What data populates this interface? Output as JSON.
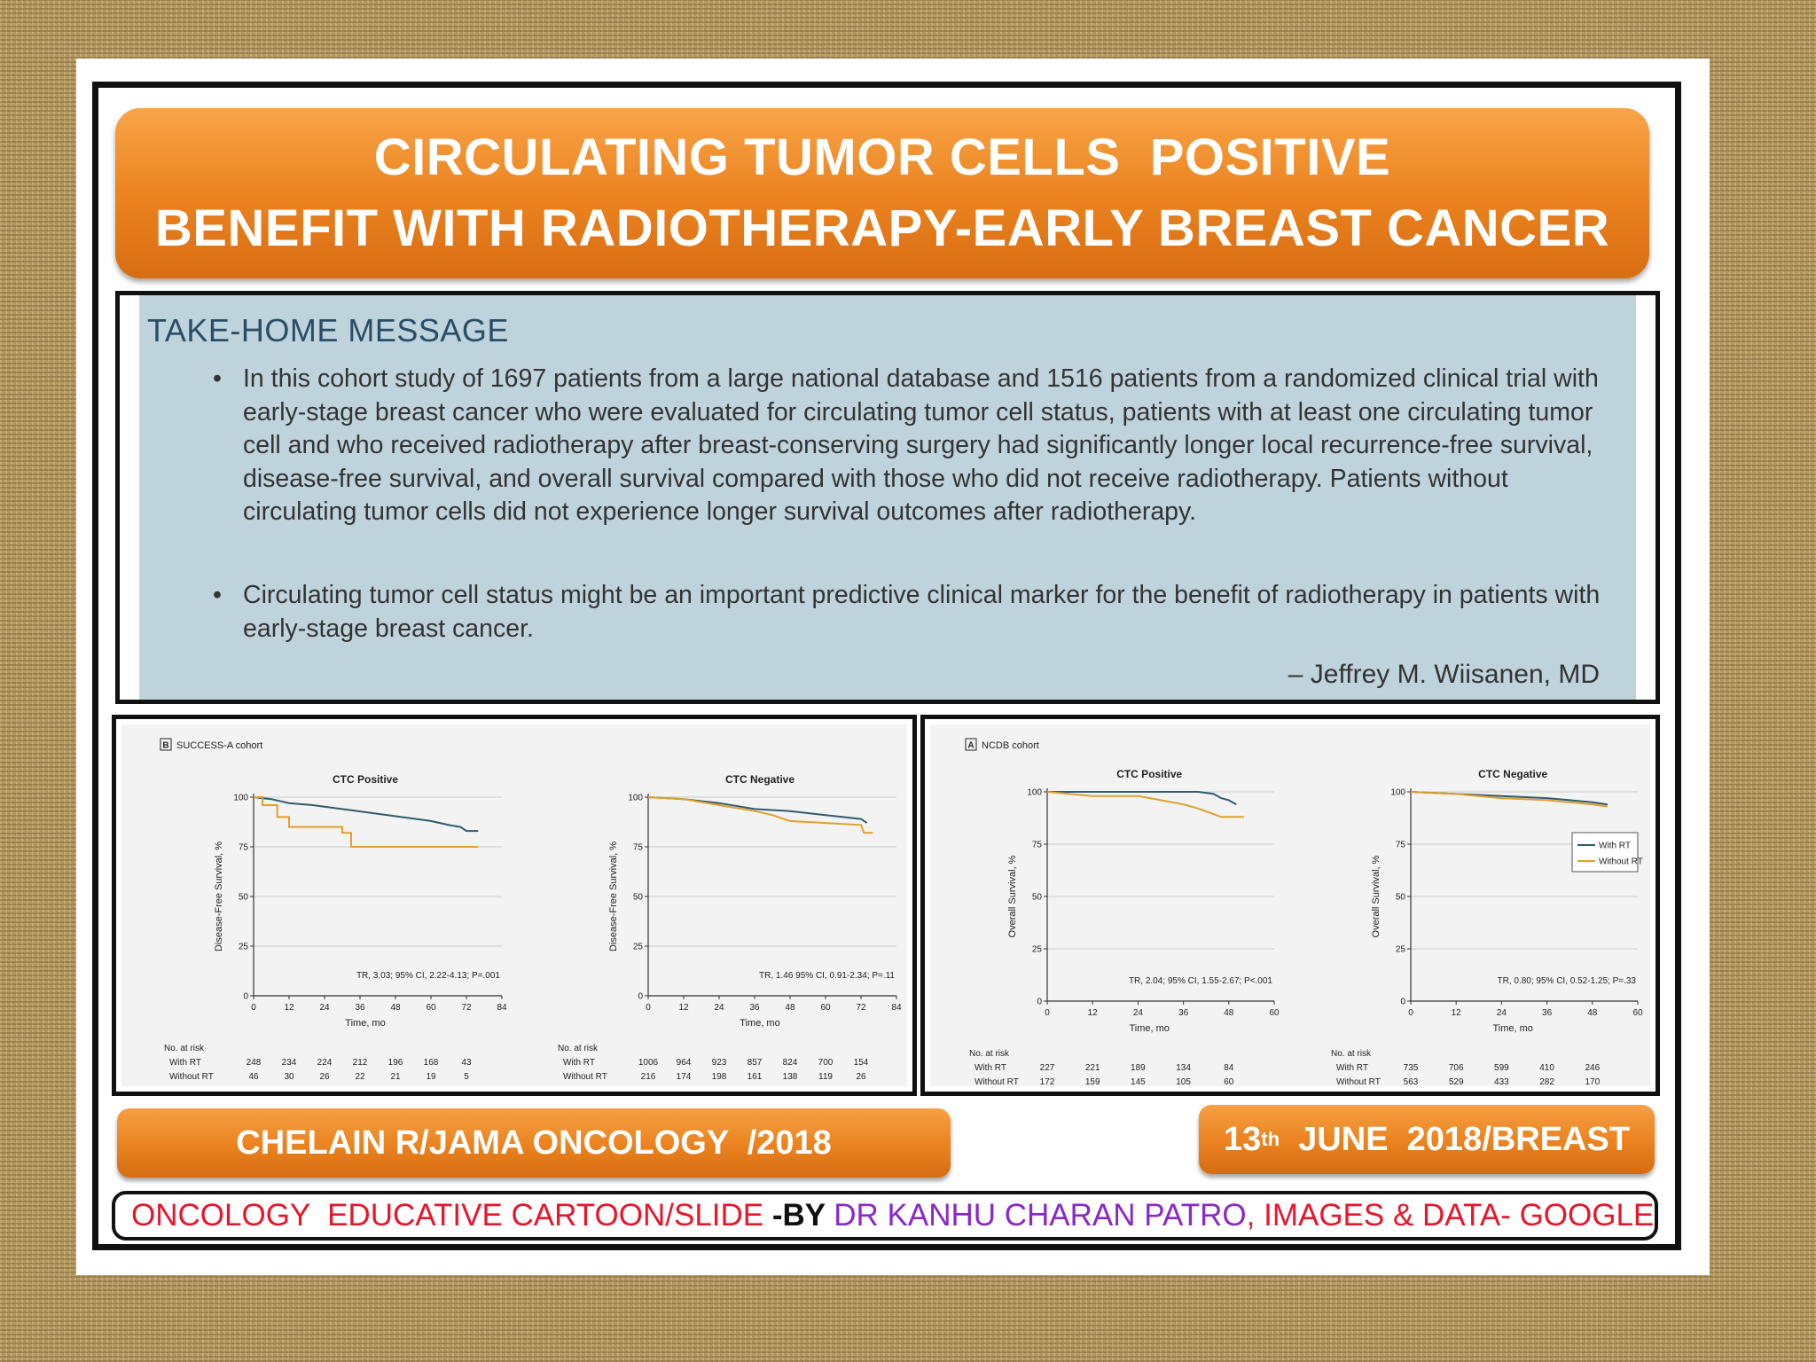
{
  "slide": {
    "title_line1": "CIRCULATING TUMOR CELLS  POSITIVE",
    "title_line2": "BENEFIT WITH RADIOTHERAPY-EARLY BREAST CANCER",
    "message_heading": "TAKE-HOME MESSAGE",
    "bullets": [
      "In this cohort study of 1697 patients from a large national database and 1516 patients from a randomized clinical trial with early-stage breast cancer who were evaluated for circulating tumor cell status, patients with at least one circulating tumor cell and who received radiotherapy after breast-conserving surgery had significantly longer local recurrence-free survival, disease-free survival, and overall survival compared with those who did not receive radiotherapy. Patients without circulating tumor cells did not experience longer survival outcomes after radiotherapy.",
      "Circulating tumor cell status might be an important predictive clinical marker for the benefit of radiotherapy in patients with early-stage breast cancer."
    ],
    "author": "– Jeffrey M. Wiisanen, MD",
    "footer_left": "CHELAIN R/JAMA ONCOLOGY  /2018",
    "footer_right_pre": "13",
    "footer_right_sup": "th",
    "footer_right_post": "  JUNE  2018/BREAST",
    "credit_part1": "ONCOLOGY  EDUCATIVE CARTOON/SLIDE ",
    "credit_part2": "-BY ",
    "credit_part3": "DR KANHU CHARAN PATRO",
    "credit_part4": ", IMAGES & DATA- GOOGLE"
  },
  "colors": {
    "with_rt": "#2f5b6e",
    "without_rt": "#e0a02a",
    "banner": "#ec8420"
  },
  "chart_data": [
    {
      "type": "line",
      "panel_label": "B",
      "cohort": "SUCCESS-A cohort",
      "title": "CTC Positive",
      "ylabel": "Disease-Free Survival, %",
      "xlabel": "Time, mo",
      "xlim": [
        0,
        84
      ],
      "ylim": [
        0,
        100
      ],
      "xticks": [
        0,
        12,
        24,
        36,
        48,
        60,
        72,
        84
      ],
      "yticks": [
        0,
        25,
        50,
        75,
        100
      ],
      "grid": true,
      "annotation": "TR, 3.03; 95% CI, 2.22-4.13; P=.001",
      "series": [
        {
          "key": "with",
          "x": [
            0,
            6,
            12,
            20,
            30,
            40,
            50,
            60,
            66,
            70,
            72,
            76
          ],
          "y": [
            100,
            99,
            97,
            96,
            94,
            92,
            90,
            88,
            86,
            85,
            83,
            83
          ]
        },
        {
          "key": "without",
          "x": [
            0,
            3,
            3,
            8,
            8,
            12,
            12,
            30,
            30,
            33,
            33,
            76
          ],
          "y": [
            100,
            100,
            96,
            96,
            90,
            90,
            85,
            85,
            82,
            82,
            75,
            75
          ]
        }
      ],
      "risk_header": "No. at risk",
      "risk_rows": [
        {
          "label": "With RT",
          "values": [
            "248",
            "234",
            "224",
            "212",
            "196",
            "168",
            "43"
          ]
        },
        {
          "label": "Without RT",
          "values": [
            "46",
            "30",
            "26",
            "22",
            "21",
            "19",
            "5"
          ]
        }
      ]
    },
    {
      "type": "line",
      "title": "CTC Negative",
      "ylabel": "Disease-Free Survival, %",
      "xlabel": "Time, mo",
      "xlim": [
        0,
        84
      ],
      "ylim": [
        0,
        100
      ],
      "xticks": [
        0,
        12,
        24,
        36,
        48,
        60,
        72,
        84
      ],
      "yticks": [
        0,
        25,
        50,
        75,
        100
      ],
      "grid": true,
      "annotation": "TR, 1.46 95% CI, 0.91-2.34; P=.11",
      "series": [
        {
          "key": "with",
          "x": [
            0,
            12,
            24,
            36,
            48,
            60,
            72,
            74
          ],
          "y": [
            100,
            99,
            97,
            94,
            93,
            91,
            89,
            87
          ]
        },
        {
          "key": "without",
          "x": [
            0,
            12,
            24,
            36,
            42,
            48,
            60,
            72,
            73,
            76
          ],
          "y": [
            100,
            99,
            96,
            93,
            91,
            88,
            87,
            86,
            82,
            82
          ]
        }
      ],
      "risk_header": "No. at risk",
      "risk_rows": [
        {
          "label": "With RT",
          "values": [
            "1006",
            "964",
            "923",
            "857",
            "824",
            "700",
            "154"
          ]
        },
        {
          "label": "Without RT",
          "values": [
            "216",
            "174",
            "198",
            "161",
            "138",
            "119",
            "26"
          ]
        }
      ]
    },
    {
      "type": "line",
      "panel_label": "A",
      "cohort": "NCDB cohort",
      "title": "CTC Positive",
      "ylabel": "Overall Survival, %",
      "xlabel": "Time, mo",
      "xlim": [
        0,
        60
      ],
      "ylim": [
        0,
        100
      ],
      "xticks": [
        0,
        12,
        24,
        36,
        48,
        60
      ],
      "yticks": [
        0,
        25,
        50,
        75,
        100
      ],
      "grid": true,
      "annotation": "TR, 2.04; 95% CI, 1.55-2.67; P<.001",
      "series": [
        {
          "key": "with",
          "x": [
            0,
            10,
            20,
            30,
            40,
            44,
            46,
            48,
            50
          ],
          "y": [
            100,
            100,
            100,
            100,
            100,
            99,
            97,
            96,
            94
          ]
        },
        {
          "key": "without",
          "x": [
            0,
            6,
            12,
            24,
            30,
            36,
            40,
            46,
            52
          ],
          "y": [
            100,
            99,
            98,
            98,
            96,
            94,
            92,
            88,
            88
          ]
        }
      ],
      "risk_header": "No. at risk",
      "risk_rows": [
        {
          "label": "With RT",
          "values": [
            "227",
            "221",
            "189",
            "134",
            "84"
          ]
        },
        {
          "label": "Without RT",
          "values": [
            "172",
            "159",
            "145",
            "105",
            "60"
          ]
        }
      ]
    },
    {
      "type": "line",
      "title": "CTC Negative",
      "ylabel": "Overall Survival, %",
      "xlabel": "Time, mo",
      "xlim": [
        0,
        60
      ],
      "ylim": [
        0,
        100
      ],
      "xticks": [
        0,
        12,
        24,
        36,
        48,
        60
      ],
      "yticks": [
        0,
        25,
        50,
        75,
        100
      ],
      "grid": true,
      "annotation": "TR, 0.80; 95% CI, 0.52-1.25; P=.33",
      "legend": {
        "position": "right",
        "entries": [
          {
            "key": "with",
            "label": "With RT"
          },
          {
            "key": "without",
            "label": "Without RT"
          }
        ]
      },
      "series": [
        {
          "key": "with",
          "x": [
            0,
            12,
            24,
            36,
            42,
            48,
            52
          ],
          "y": [
            100,
            99,
            98,
            97,
            96,
            95,
            94
          ]
        },
        {
          "key": "without",
          "x": [
            0,
            12,
            24,
            36,
            42,
            48,
            52
          ],
          "y": [
            100,
            99,
            97,
            96,
            95,
            94,
            93
          ]
        }
      ],
      "risk_header": "No. at risk",
      "risk_rows": [
        {
          "label": "With RT",
          "values": [
            "735",
            "706",
            "599",
            "410",
            "246"
          ]
        },
        {
          "label": "Without RT",
          "values": [
            "563",
            "529",
            "433",
            "282",
            "170"
          ]
        }
      ]
    }
  ]
}
